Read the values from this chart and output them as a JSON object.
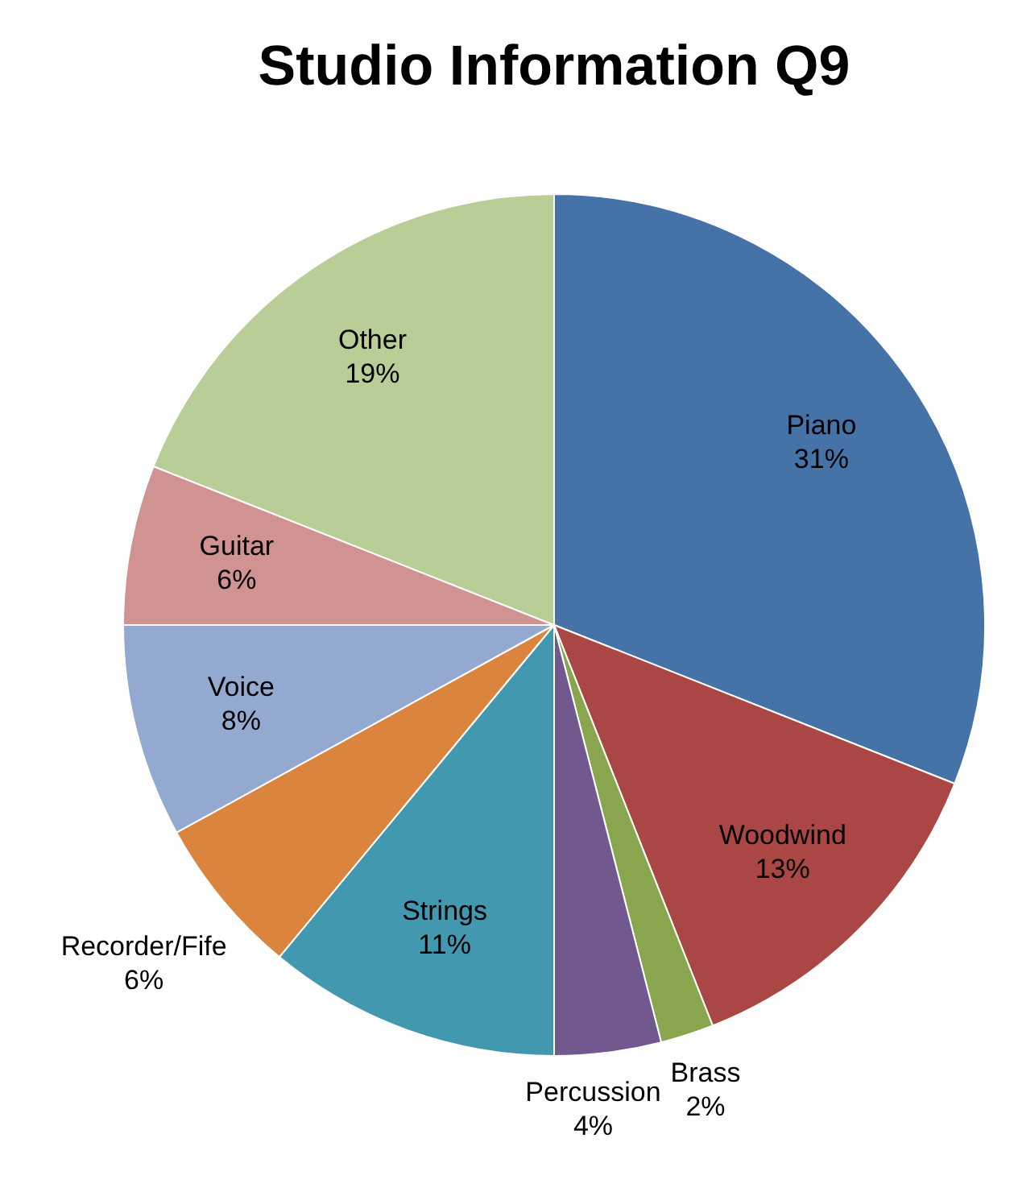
{
  "chart_data": {
    "type": "pie",
    "title": "Studio Information Q9",
    "categories": [
      "Piano",
      "Woodwind",
      "Brass",
      "Percussion",
      "Strings",
      "Recorder/Fife",
      "Voice",
      "Guitar",
      "Other"
    ],
    "values": [
      31,
      13,
      2,
      4,
      11,
      6,
      8,
      6,
      19
    ],
    "colors": [
      "#4572a7",
      "#aa4643",
      "#89a54e",
      "#71588f",
      "#4198af",
      "#db843d",
      "#93a9cf",
      "#d19392",
      "#b9cd96"
    ],
    "value_labels": [
      "31%",
      "13%",
      "2%",
      "4%",
      "11%",
      "6%",
      "8%",
      "6%",
      "19%"
    ]
  }
}
